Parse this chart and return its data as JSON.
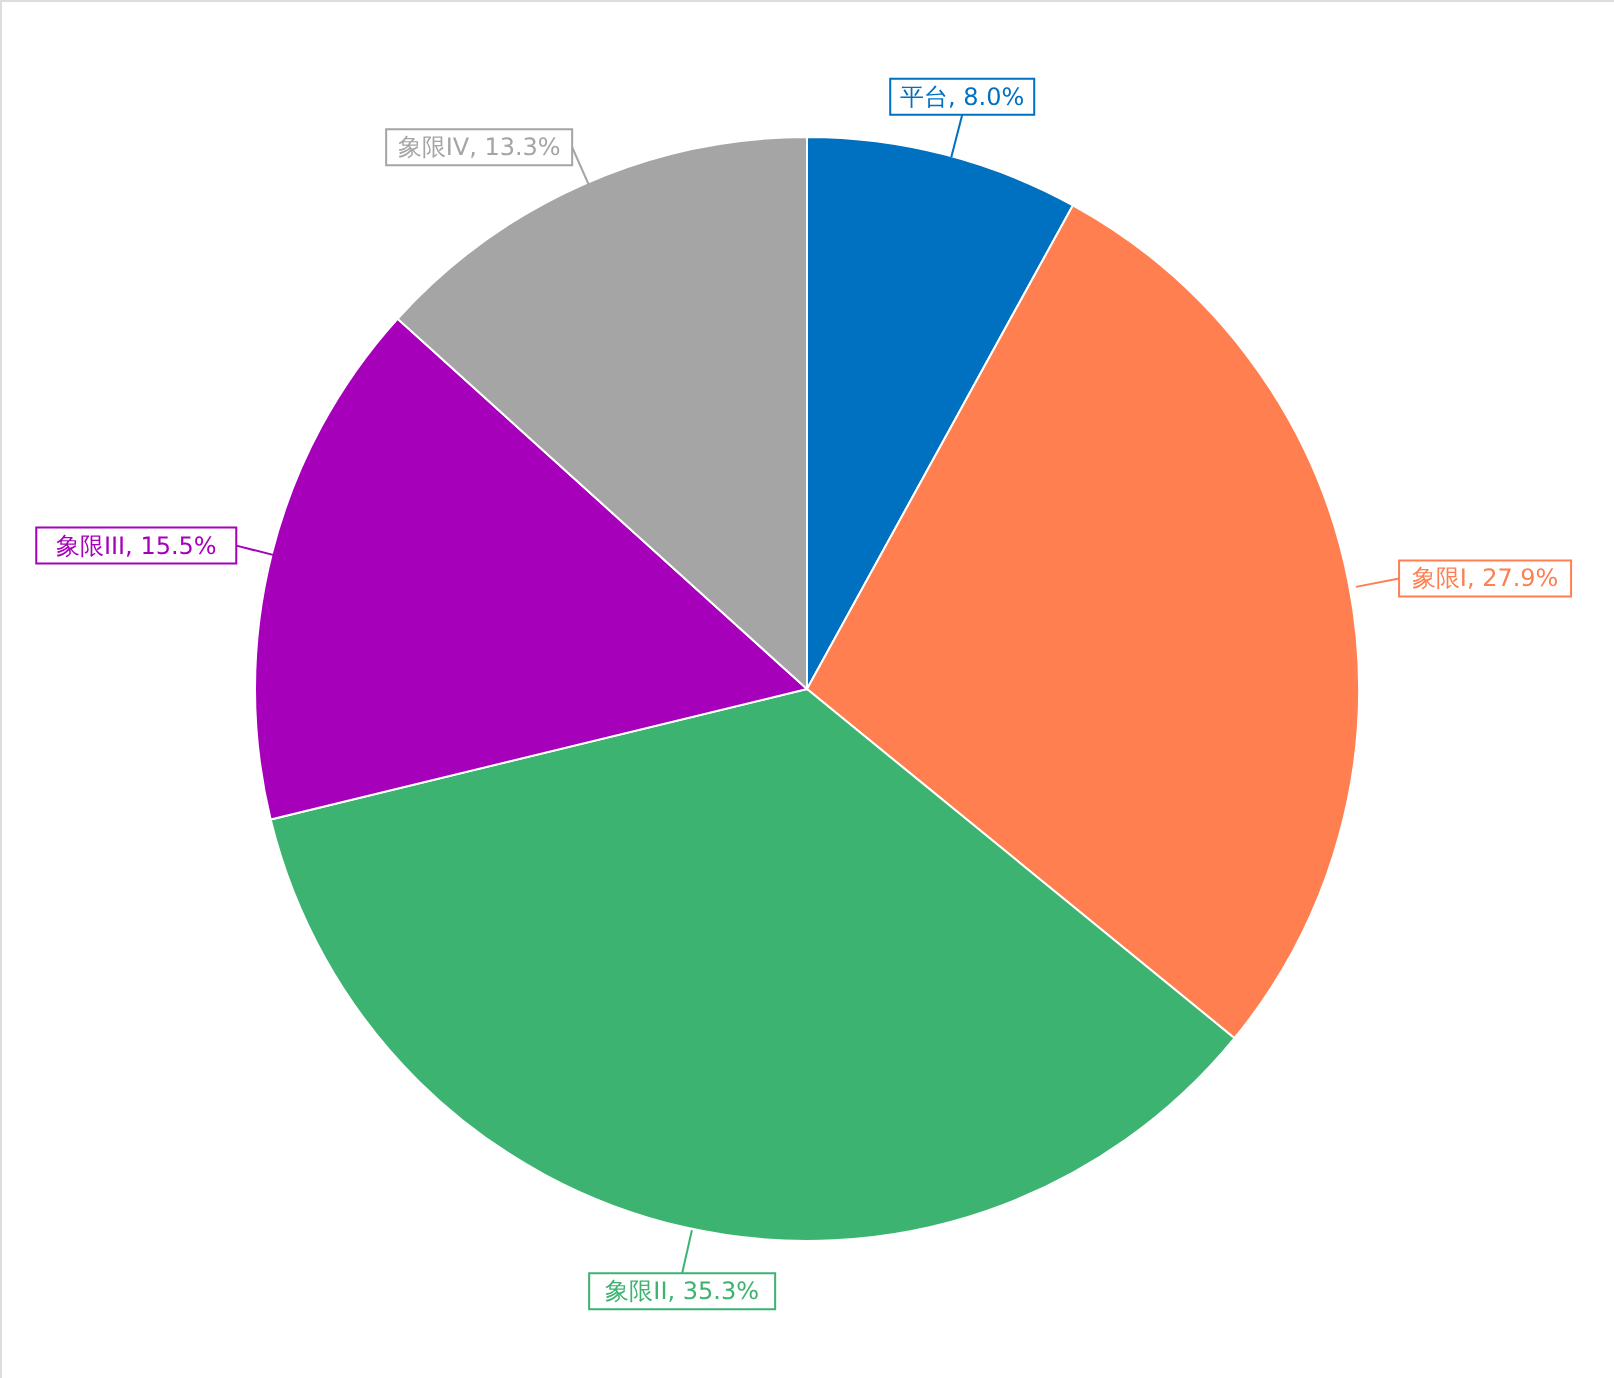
{
  "chart_data": {
    "type": "pie",
    "categories": [
      "平台",
      "象限I",
      "象限II",
      "象限III",
      "象限IV"
    ],
    "values": [
      8.0,
      27.9,
      35.3,
      15.5,
      13.3
    ],
    "value_labels": [
      "8.0%",
      "27.9%",
      "35.3%",
      "15.5%",
      "13.3%"
    ],
    "colors": [
      "#0070c0",
      "#ff7f50",
      "#3cb371",
      "#a600bb",
      "#a5a5a5"
    ]
  }
}
